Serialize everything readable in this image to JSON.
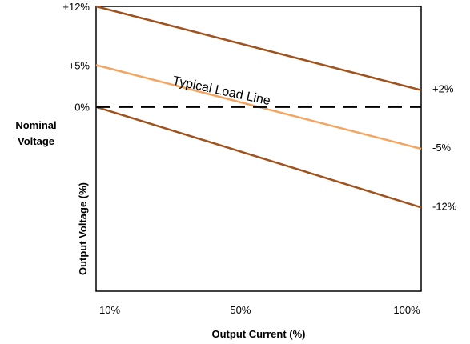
{
  "chart_data": {
    "type": "line",
    "xlabel": "Output Current (%)",
    "ylabel": "Output Voltage (%)",
    "y_side_label": [
      "Nominal",
      "Voltage"
    ],
    "xlim": [
      10,
      100
    ],
    "ylim": [
      -22,
      12
    ],
    "x_ticks": [
      {
        "value": 10,
        "label": "10%"
      },
      {
        "value": 50,
        "label": "50%"
      },
      {
        "value": 100,
        "label": "100%"
      }
    ],
    "y_ticks_left": [
      {
        "value": 12,
        "label": "+12%"
      },
      {
        "value": 5,
        "label": "+5%"
      },
      {
        "value": 0,
        "label": "0%"
      }
    ],
    "y_ticks_right": [
      {
        "value": 2,
        "label": "+2%"
      },
      {
        "value": -5,
        "label": "-5%"
      },
      {
        "value": -12,
        "label": "-12%"
      }
    ],
    "series": [
      {
        "x": [
          10,
          100
        ],
        "y": [
          12,
          2
        ],
        "color": "#A0521E",
        "style": "solid"
      },
      {
        "name": "Typical Load Line",
        "x": [
          10,
          100
        ],
        "y": [
          5,
          -5
        ],
        "color": "#F4A460",
        "style": "solid"
      },
      {
        "x": [
          10,
          100
        ],
        "y": [
          0,
          -12
        ],
        "color": "#A0521E",
        "style": "solid"
      },
      {
        "x": [
          10,
          100
        ],
        "y": [
          0,
          0
        ],
        "color": "#000000",
        "style": "dashed"
      }
    ],
    "annotation": {
      "text": "Typical Load Line",
      "x": 31,
      "y": 2.7,
      "angle_deg": 12
    },
    "grid": false,
    "legend": "none"
  }
}
